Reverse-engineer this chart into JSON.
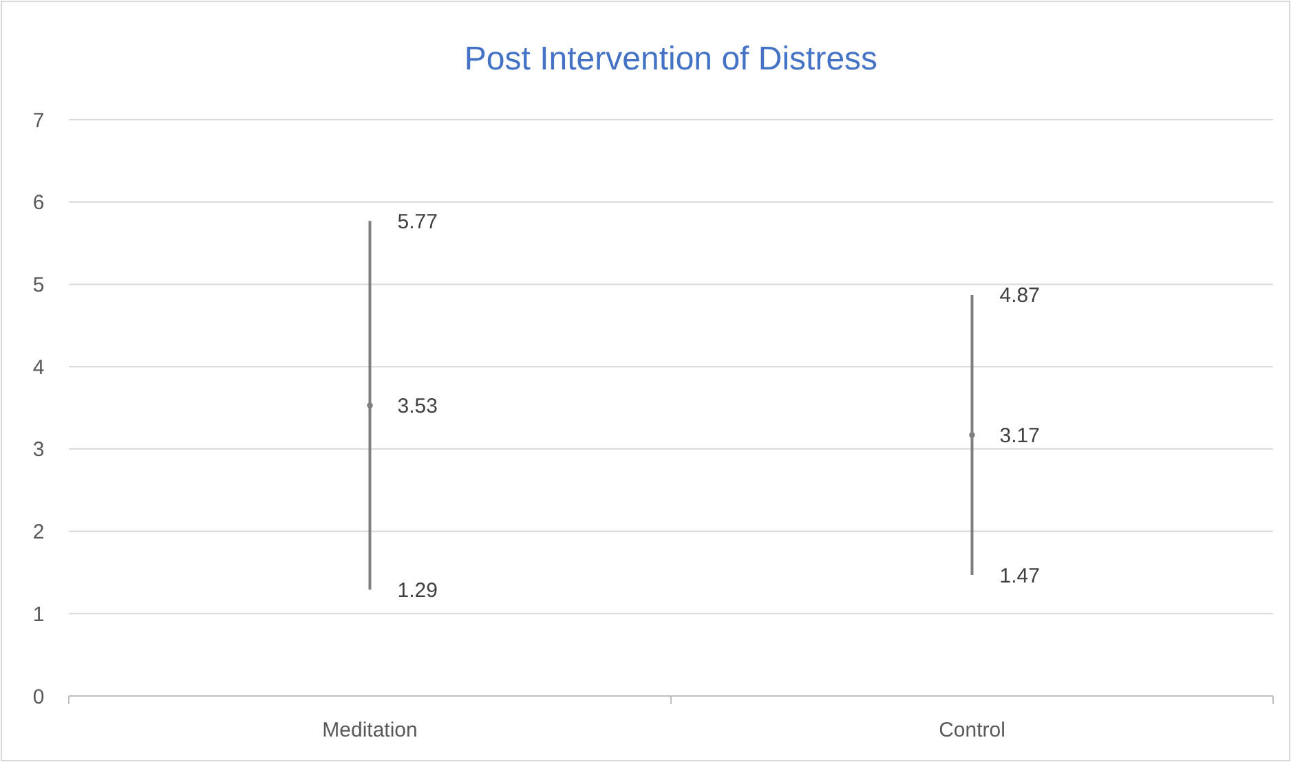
{
  "chart_data": {
    "type": "scatter",
    "title": "Post Intervention of Distress",
    "categories": [
      "Meditation",
      "Control"
    ],
    "series": [
      {
        "color": "#7f7f7f",
        "values": [
          3.53,
          3.17
        ],
        "errors": [
          [
            1.29,
            5.77
          ],
          [
            1.47,
            4.87
          ]
        ]
      }
    ],
    "data_labels": true,
    "annotations": [
      {
        "text": "5.77",
        "x": "Meditation",
        "y": 5.77
      },
      {
        "text": "1.29",
        "x": "Meditation",
        "y": 1.29
      },
      {
        "text": "4.87",
        "x": "Control",
        "y": 4.87
      },
      {
        "text": "1.47",
        "x": "Control",
        "y": 1.47
      }
    ],
    "ylim": [
      0,
      7
    ],
    "yticks": [
      0,
      1,
      2,
      3,
      4,
      5,
      6,
      7
    ],
    "grid": "y"
  }
}
